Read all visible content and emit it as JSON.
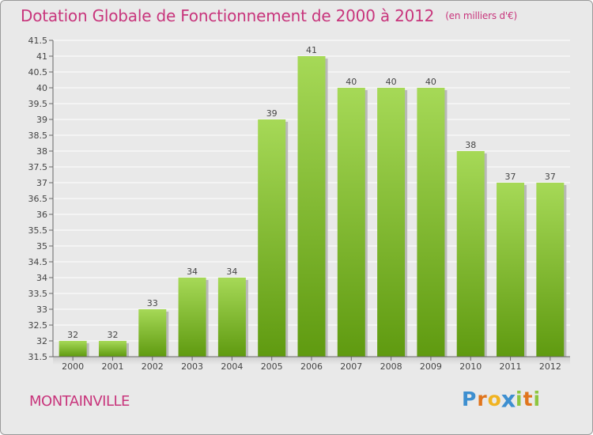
{
  "title": "Dotation Globale de Fonctionnement de 2000 à 2012",
  "subtitle": "(en milliers d'€)",
  "city": "MONTAINVILLE",
  "logo": {
    "letters": [
      "P",
      "r",
      "o",
      "x",
      "i",
      "t",
      "i"
    ],
    "colors": [
      "#3d8fd0",
      "#e0751d",
      "#f0b321",
      "#3d8fd0",
      "#8dc63f",
      "#e0751d",
      "#8dc63f"
    ]
  },
  "colors": {
    "title": "#c8357c",
    "bar_light": "#a6d957",
    "bar_dark": "#5f9a10",
    "background": "#e9e9e9"
  },
  "chart_data": {
    "type": "bar",
    "title": "Dotation Globale de Fonctionnement de 2000 à 2012",
    "ylabel": "en milliers d'€",
    "categories": [
      "2000",
      "2001",
      "2002",
      "2003",
      "2004",
      "2005",
      "2006",
      "2007",
      "2008",
      "2009",
      "2010",
      "2011",
      "2012"
    ],
    "values": [
      32,
      32,
      33,
      34,
      34,
      39,
      41,
      40,
      40,
      40,
      38,
      37,
      37
    ],
    "labels": [
      "32",
      "32",
      "33",
      "34",
      "34",
      "39",
      "41",
      "40",
      "40",
      "40",
      "38",
      "37",
      "37"
    ],
    "ylim": [
      31.5,
      41.5
    ],
    "yticks": [
      "31.5",
      "32",
      "32.5",
      "33",
      "33.5",
      "34",
      "34.5",
      "35",
      "35.5",
      "36",
      "36.5",
      "37",
      "37.5",
      "38",
      "38.5",
      "39",
      "39.5",
      "40",
      "40.5",
      "41",
      "41.5"
    ],
    "grid": true
  }
}
